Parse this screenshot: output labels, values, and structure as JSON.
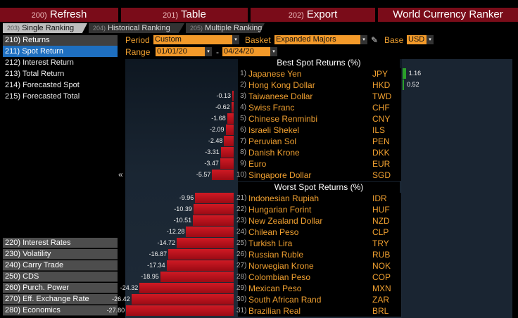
{
  "toolbar": {
    "refresh": {
      "num": "200)",
      "label": "Refresh"
    },
    "table": {
      "num": "201)",
      "label": "Table"
    },
    "export": {
      "num": "202)",
      "label": "Export"
    },
    "title": "World Currency Ranker"
  },
  "tabs": [
    {
      "num": "203)",
      "label": "Single Ranking"
    },
    {
      "num": "204)",
      "label": "Historical Ranking"
    },
    {
      "num": "205)",
      "label": "Multiple Ranking"
    }
  ],
  "menu": {
    "head": "210) Returns",
    "items": [
      "211) Spot Return",
      "212) Interest Return",
      "213) Total Return",
      "214) Forecasted Spot",
      "215) Forecasted Total"
    ],
    "bottom": [
      "220) Interest Rates",
      "230) Volatility",
      "240) Carry Trade",
      "250) CDS",
      "260) Purch. Power",
      "270) Eff. Exchange Rate",
      "280) Economics"
    ],
    "collapse_glyph": "«"
  },
  "filters": {
    "period_label": "Period",
    "period_value": "Custom",
    "basket_label": "Basket",
    "basket_value": "Expanded Majors",
    "base_label": "Base",
    "base_value": "USD",
    "range_label": "Range",
    "range_from": "01/01/20",
    "range_sep": "-",
    "range_to": "04/24/20",
    "dropdown_glyph": "▾"
  },
  "best_title": "Best Spot Returns (%)",
  "worst_title": "Worst Spot Returns (%)",
  "best": [
    {
      "rank": "1)",
      "name": "Japanese Yen",
      "code": "JPY",
      "value": "1.16"
    },
    {
      "rank": "2)",
      "name": "Hong Kong Dollar",
      "code": "HKD",
      "value": "0.52"
    },
    {
      "rank": "3)",
      "name": "Taiwanese Dollar",
      "code": "TWD",
      "value": "-0.13"
    },
    {
      "rank": "4)",
      "name": "Swiss Franc",
      "code": "CHF",
      "value": "-0.62"
    },
    {
      "rank": "5)",
      "name": "Chinese Renminbi",
      "code": "CNY",
      "value": "-1.68"
    },
    {
      "rank": "6)",
      "name": "Israeli Shekel",
      "code": "ILS",
      "value": "-2.09"
    },
    {
      "rank": "7)",
      "name": "Peruvian Sol",
      "code": "PEN",
      "value": "-2.48"
    },
    {
      "rank": "8)",
      "name": "Danish Krone",
      "code": "DKK",
      "value": "-3.31"
    },
    {
      "rank": "9)",
      "name": "Euro",
      "code": "EUR",
      "value": "-3.47"
    },
    {
      "rank": "10)",
      "name": "Singapore Dollar",
      "code": "SGD",
      "value": "-5.57"
    }
  ],
  "worst": [
    {
      "rank": "21)",
      "name": "Indonesian Rupiah",
      "code": "IDR",
      "value": "-9.96"
    },
    {
      "rank": "22)",
      "name": "Hungarian Forint",
      "code": "HUF",
      "value": "-10.39"
    },
    {
      "rank": "23)",
      "name": "New Zealand Dollar",
      "code": "NZD",
      "value": "-10.51"
    },
    {
      "rank": "24)",
      "name": "Chilean Peso",
      "code": "CLP",
      "value": "-12.28"
    },
    {
      "rank": "25)",
      "name": "Turkish Lira",
      "code": "TRY",
      "value": "-14.72"
    },
    {
      "rank": "26)",
      "name": "Russian Ruble",
      "code": "RUB",
      "value": "-16.87"
    },
    {
      "rank": "27)",
      "name": "Norwegian Krone",
      "code": "NOK",
      "value": "-17.34"
    },
    {
      "rank": "28)",
      "name": "Colombian Peso",
      "code": "COP",
      "value": "-18.95"
    },
    {
      "rank": "29)",
      "name": "Mexican Peso",
      "code": "MXN",
      "value": "-24.32"
    },
    {
      "rank": "30)",
      "name": "South African Rand",
      "code": "ZAR",
      "value": "-26.42"
    },
    {
      "rank": "31)",
      "name": "Brazilian Real",
      "code": "BRL",
      "value": "-27.80"
    }
  ],
  "colors": {
    "accent": "#f0a030",
    "negative": "#c0141e",
    "positive": "#2aa02a",
    "toolbar": "#7a0c19",
    "selected": "#1e6fc0"
  }
}
